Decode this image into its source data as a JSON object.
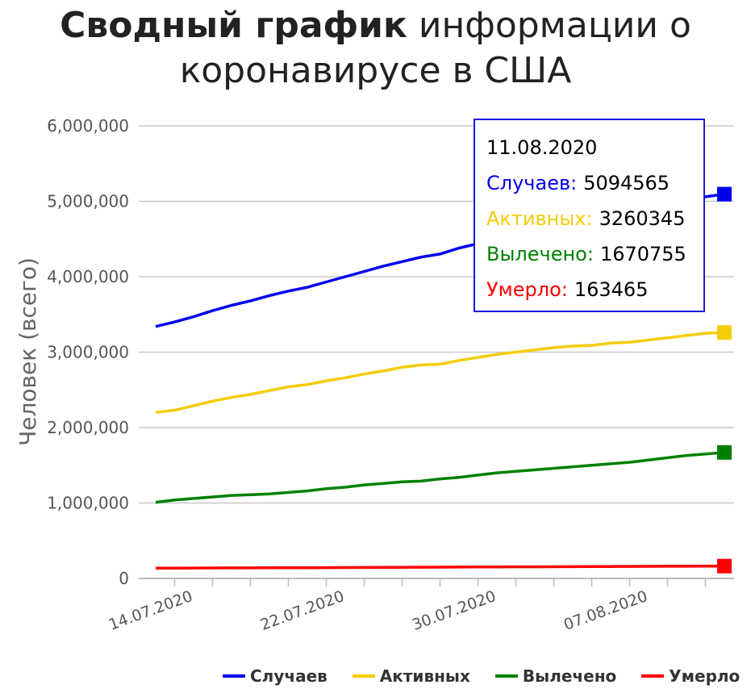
{
  "title_bold": "Сводный график",
  "title_rest": " информации о коронавирусе в США",
  "chart_data": {
    "type": "line",
    "title": "Сводный график информации о коронавирусе в США",
    "ylabel": "Человек (всего)",
    "xlabel": "",
    "ylim": [
      0,
      6000000
    ],
    "yticks": [
      "0",
      "1,000,000",
      "2,000,000",
      "3,000,000",
      "4,000,000",
      "5,000,000",
      "6,000,000"
    ],
    "xticks": [
      "14.07.2020",
      "22.07.2020",
      "30.07.2020",
      "07.08.2020"
    ],
    "grid": true,
    "legend_position": "bottom",
    "x": [
      "12.07.2020",
      "13.07.2020",
      "14.07.2020",
      "15.07.2020",
      "16.07.2020",
      "17.07.2020",
      "18.07.2020",
      "19.07.2020",
      "20.07.2020",
      "21.07.2020",
      "22.07.2020",
      "23.07.2020",
      "24.07.2020",
      "25.07.2020",
      "26.07.2020",
      "27.07.2020",
      "28.07.2020",
      "29.07.2020",
      "30.07.2020",
      "31.07.2020",
      "01.08.2020",
      "02.08.2020",
      "03.08.2020",
      "04.08.2020",
      "05.08.2020",
      "06.08.2020",
      "07.08.2020",
      "08.08.2020",
      "09.08.2020",
      "10.08.2020",
      "11.08.2020"
    ],
    "series": [
      {
        "name": "Случаев",
        "color": "#0000ee",
        "values": [
          3340000,
          3400000,
          3470000,
          3550000,
          3620000,
          3680000,
          3750000,
          3810000,
          3860000,
          3930000,
          4000000,
          4070000,
          4140000,
          4200000,
          4260000,
          4300000,
          4380000,
          4440000,
          4490000,
          4560000,
          4620000,
          4680000,
          4740000,
          4780000,
          4840000,
          4890000,
          4940000,
          4990000,
          5040000,
          5060000,
          5094565
        ]
      },
      {
        "name": "Активных",
        "color": "#f5cc0a",
        "values": [
          2200000,
          2230000,
          2290000,
          2350000,
          2400000,
          2440000,
          2490000,
          2540000,
          2570000,
          2620000,
          2660000,
          2710000,
          2750000,
          2800000,
          2830000,
          2840000,
          2890000,
          2930000,
          2970000,
          3000000,
          3030000,
          3060000,
          3080000,
          3090000,
          3120000,
          3130000,
          3160000,
          3190000,
          3220000,
          3250000,
          3260345
        ]
      },
      {
        "name": "Вылечено",
        "color": "#008000",
        "values": [
          1010000,
          1040000,
          1060000,
          1080000,
          1100000,
          1110000,
          1120000,
          1140000,
          1160000,
          1190000,
          1210000,
          1240000,
          1260000,
          1280000,
          1290000,
          1320000,
          1340000,
          1370000,
          1400000,
          1420000,
          1440000,
          1460000,
          1480000,
          1500000,
          1520000,
          1540000,
          1570000,
          1600000,
          1630000,
          1650000,
          1670755
        ]
      },
      {
        "name": "Умерло",
        "color": "#ff0000",
        "values": [
          136000,
          137000,
          138000,
          139000,
          140000,
          140500,
          141000,
          142000,
          142500,
          143500,
          144500,
          145500,
          146500,
          147500,
          148500,
          149500,
          150500,
          151500,
          152500,
          153500,
          154500,
          155500,
          156500,
          157500,
          158500,
          159500,
          160000,
          161000,
          162000,
          162800,
          163465
        ]
      }
    ]
  },
  "tooltip": {
    "date": "11.08.2020",
    "rows": [
      {
        "label": "Случаев:",
        "value": "5094565",
        "color": "#0000ee"
      },
      {
        "label": "Активных:",
        "value": "3260345",
        "color": "#f5cc0a"
      },
      {
        "label": "Вылечено:",
        "value": "1670755",
        "color": "#008000"
      },
      {
        "label": "Умерло:",
        "value": "163465",
        "color": "#ff0000"
      }
    ]
  },
  "legend": [
    {
      "label": "Случаев",
      "color": "#0000ee"
    },
    {
      "label": "Активных",
      "color": "#f5cc0a"
    },
    {
      "label": "Вылечено",
      "color": "#008000"
    },
    {
      "label": "Умерло",
      "color": "#ff0000"
    }
  ]
}
